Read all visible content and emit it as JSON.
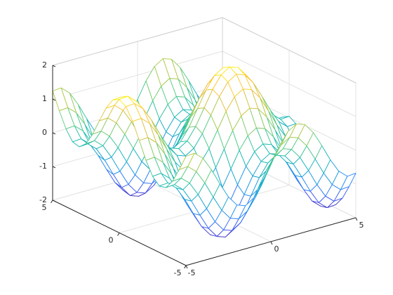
{
  "chart_data": {
    "type": "mesh",
    "x": [
      -5,
      -4.5,
      -4,
      -3.5,
      -3,
      -2.5,
      -2,
      -1.5,
      -1,
      -0.5,
      0,
      0.5,
      1,
      1.5,
      2,
      2.5,
      3,
      3.5,
      4,
      4.5,
      5
    ],
    "y": [
      -5,
      -4.5,
      -4,
      -3.5,
      -3,
      -2.5,
      -2,
      -1.5,
      -1,
      -0.5,
      0,
      0.5,
      1,
      1.5,
      2,
      2.5,
      3,
      3.5,
      4,
      4.5,
      5
    ],
    "z": [
      [
        1.24,
        1.26,
        1.04,
        0.63,
        0.14,
        -0.32,
        -0.63,
        -0.72,
        -0.56,
        -0.2,
        0.28,
        0.76,
        1.12,
        1.28,
        1.19,
        0.88,
        0.42,
        -0.07,
        -0.48,
        -0.7,
        -0.68
      ],
      [
        0.75,
        0.77,
        0.55,
        0.14,
        -0.35,
        -0.81,
        -1.12,
        -1.21,
        -1.05,
        -0.69,
        -0.21,
        0.27,
        0.63,
        0.79,
        0.7,
        0.39,
        -0.07,
        -0.56,
        -0.97,
        -1.19,
        -1.17
      ],
      [
        0.31,
        0.33,
        0.11,
        -0.3,
        -0.79,
        -1.25,
        -1.56,
        -1.65,
        -1.49,
        -1.13,
        -0.65,
        -0.17,
        0.19,
        0.35,
        0.26,
        -0.05,
        -0.51,
        -1,
        -1.41,
        -1.63,
        -1.61
      ],
      [
        0.02,
        0.04,
        -0.18,
        -0.59,
        -1.08,
        -1.54,
        -1.85,
        -1.94,
        -1.78,
        -1.42,
        -0.94,
        -0.46,
        -0.1,
        0.06,
        -0.03,
        -0.34,
        -0.8,
        -1.29,
        -1.7,
        -1.92,
        -1.9
      ],
      [
        -0.03,
        -0.01,
        -0.23,
        -0.64,
        -1.13,
        -1.59,
        -1.9,
        -1.99,
        -1.83,
        -1.47,
        -0.99,
        -0.51,
        -0.15,
        0.01,
        -0.08,
        -0.39,
        -0.85,
        -1.34,
        -1.75,
        -1.97,
        -1.95
      ],
      [
        0.16,
        0.18,
        -0.04,
        -0.45,
        -0.94,
        -1.4,
        -1.71,
        -1.8,
        -1.64,
        -1.28,
        -0.8,
        -0.32,
        0.04,
        0.2,
        0.11,
        -0.2,
        -0.66,
        -1.15,
        -1.56,
        -1.78,
        -1.76
      ],
      [
        0.54,
        0.56,
        0.34,
        -0.07,
        -0.56,
        -1.02,
        -1.33,
        -1.42,
        -1.26,
        -0.9,
        -0.42,
        0.06,
        0.42,
        0.58,
        0.49,
        0.18,
        -0.28,
        -0.77,
        -1.18,
        -1.4,
        -1.38
      ],
      [
        1.03,
        1.05,
        0.83,
        0.42,
        -0.07,
        -0.53,
        -0.84,
        -0.93,
        -0.77,
        -0.41,
        0.07,
        0.55,
        0.91,
        1.07,
        0.98,
        0.67,
        0.21,
        -0.28,
        -0.69,
        -0.91,
        -0.89
      ],
      [
        1.5,
        1.52,
        1.3,
        0.89,
        0.4,
        -0.06,
        -0.37,
        -0.46,
        -0.3,
        0.06,
        0.54,
        1.02,
        1.38,
        1.54,
        1.45,
        1.14,
        0.68,
        0.19,
        -0.22,
        -0.44,
        -0.42
      ],
      [
        1.84,
        1.86,
        1.64,
        1.23,
        0.74,
        0.28,
        -0.03,
        -0.12,
        0.04,
        0.4,
        0.88,
        1.36,
        1.72,
        1.88,
        1.79,
        1.48,
        1.02,
        0.53,
        0.12,
        -0.1,
        -0.08
      ],
      [
        1.96,
        1.98,
        1.76,
        1.35,
        0.86,
        0.4,
        0.09,
        0,
        0.16,
        0.52,
        1,
        1.48,
        1.84,
        2,
        1.91,
        1.6,
        1.14,
        0.65,
        0.24,
        0.02,
        0.04
      ],
      [
        1.84,
        1.86,
        1.64,
        1.23,
        0.74,
        0.28,
        -0.03,
        -0.12,
        0.04,
        0.4,
        0.88,
        1.36,
        1.72,
        1.88,
        1.79,
        1.48,
        1.02,
        0.53,
        0.12,
        -0.1,
        -0.08
      ],
      [
        1.5,
        1.52,
        1.3,
        0.89,
        0.4,
        -0.06,
        -0.37,
        -0.46,
        -0.3,
        0.06,
        0.54,
        1.02,
        1.38,
        1.54,
        1.45,
        1.14,
        0.68,
        0.19,
        -0.22,
        -0.44,
        -0.42
      ],
      [
        1.03,
        1.05,
        0.83,
        0.42,
        -0.07,
        -0.53,
        -0.84,
        -0.93,
        -0.77,
        -0.41,
        0.07,
        0.55,
        0.91,
        1.07,
        0.98,
        0.67,
        0.21,
        -0.28,
        -0.69,
        -0.91,
        -0.89
      ],
      [
        0.54,
        0.56,
        0.34,
        -0.07,
        -0.56,
        -1.02,
        -1.33,
        -1.42,
        -1.26,
        -0.9,
        -0.42,
        0.06,
        0.42,
        0.58,
        0.49,
        0.18,
        -0.28,
        -0.77,
        -1.18,
        -1.4,
        -1.38
      ],
      [
        0.16,
        0.18,
        -0.04,
        -0.45,
        -0.94,
        -1.4,
        -1.71,
        -1.8,
        -1.64,
        -1.28,
        -0.8,
        -0.32,
        0.04,
        0.2,
        0.11,
        -0.2,
        -0.66,
        -1.15,
        -1.56,
        -1.78,
        -1.76
      ],
      [
        -0.03,
        -0.01,
        -0.23,
        -0.64,
        -1.13,
        -1.59,
        -1.9,
        -1.99,
        -1.83,
        -1.47,
        -0.99,
        -0.51,
        -0.15,
        0.01,
        -0.08,
        -0.39,
        -0.85,
        -1.34,
        -1.75,
        -1.97,
        -1.95
      ],
      [
        0.02,
        0.04,
        -0.18,
        -0.59,
        -1.08,
        -1.54,
        -1.85,
        -1.94,
        -1.78,
        -1.42,
        -0.94,
        -0.46,
        -0.1,
        0.06,
        -0.03,
        -0.34,
        -0.8,
        -1.29,
        -1.7,
        -1.92,
        -1.9
      ],
      [
        0.31,
        0.33,
        0.11,
        -0.3,
        -0.79,
        -1.25,
        -1.56,
        -1.65,
        -1.49,
        -1.13,
        -0.65,
        -0.17,
        0.19,
        0.35,
        0.26,
        -0.05,
        -0.51,
        -1,
        -1.41,
        -1.63,
        -1.61
      ],
      [
        0.75,
        0.77,
        0.55,
        0.14,
        -0.35,
        -0.81,
        -1.12,
        -1.21,
        -1.05,
        -0.69,
        -0.21,
        0.27,
        0.63,
        0.79,
        0.7,
        0.39,
        -0.07,
        -0.56,
        -0.97,
        -1.19,
        -1.17
      ],
      [
        1.24,
        1.26,
        1.04,
        0.63,
        0.14,
        -0.32,
        -0.63,
        -0.72,
        -0.56,
        -0.2,
        0.28,
        0.76,
        1.12,
        1.28,
        1.19,
        0.88,
        0.42,
        -0.07,
        -0.48,
        -0.7,
        -0.68
      ]
    ],
    "xlim": [
      -5,
      5
    ],
    "ylim": [
      -5,
      5
    ],
    "zlim": [
      -2,
      2
    ],
    "xticks": [
      -5,
      0,
      5
    ],
    "yticks": [
      -5,
      0,
      5
    ],
    "zticks": [
      -2,
      -1,
      0,
      1,
      2
    ],
    "grid": true,
    "colormap": "parula"
  }
}
